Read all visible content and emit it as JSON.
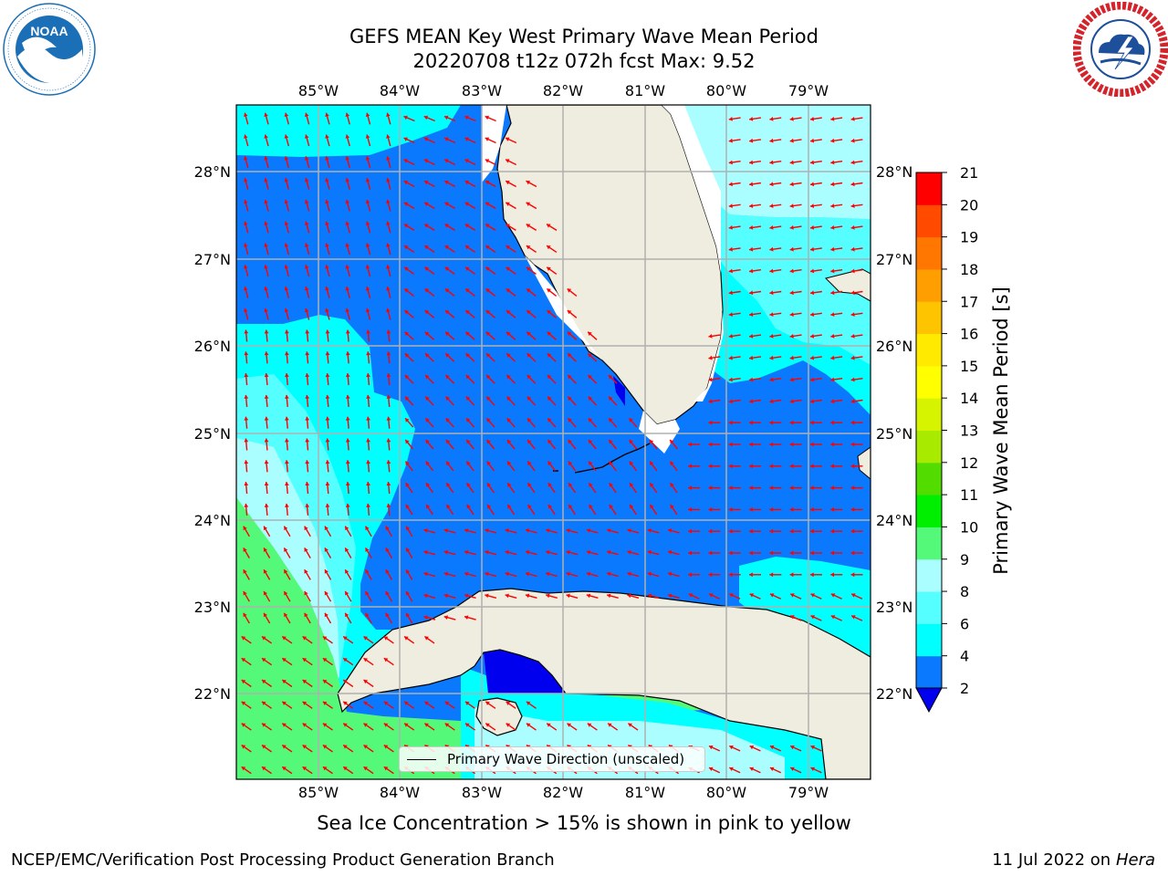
{
  "title_line1": "GEFS MEAN Key West Primary Wave Mean Period",
  "title_line2": "20220708 t12z 072h fcst   Max: 9.52",
  "logos": {
    "noaa": {
      "text": "NOAA",
      "ring_text": "NATIONAL OCEANIC AND ATMOSPHERIC ADMINISTRATION · U.S. DEPARTMENT OF COMMERCE",
      "colors": [
        "#1b6fb6",
        "#ffffff"
      ]
    },
    "nws": {
      "ring_text": "NATIONAL WEATHER SERVICE",
      "colors": [
        "#d4232a",
        "#1d4f9a"
      ]
    }
  },
  "map": {
    "lon_labels": [
      "85°W",
      "84°W",
      "83°W",
      "82°W",
      "81°W",
      "80°W",
      "79°W"
    ],
    "lat_labels": [
      "28°N",
      "27°N",
      "26°N",
      "25°N",
      "24°N",
      "23°N",
      "22°N"
    ],
    "legend_text": "Primary Wave Direction (unscaled)",
    "arrow_color": "#ff0000",
    "land_color": "#eeeddf"
  },
  "colorbar": {
    "label": "Primary Wave Mean Period [s]",
    "ticks": [
      "2",
      "4",
      "6",
      "8",
      "9",
      "10",
      "11",
      "12",
      "13",
      "14",
      "15",
      "16",
      "17",
      "18",
      "19",
      "20",
      "21"
    ],
    "colors": [
      "#0000ee",
      "#0a79fe",
      "#00ffff",
      "#55feff",
      "#aafeff",
      "#55f97a",
      "#00ef00",
      "#52dc00",
      "#a9eb00",
      "#d6f300",
      "#ffff00",
      "#ffea00",
      "#ffc400",
      "#ff9e00",
      "#ff7600",
      "#ff4a00",
      "#ff0000"
    ]
  },
  "subtitle": "Sea Ice Concentration > 15% is shown in pink to yellow",
  "footer_left": "NCEP/EMC/Verification Post Processing Product Generation Branch",
  "footer_date": "11 Jul 2022 on",
  "footer_machine": "Hera"
}
